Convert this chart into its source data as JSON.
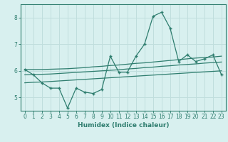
{
  "x": [
    0,
    1,
    2,
    3,
    4,
    5,
    6,
    7,
    8,
    9,
    10,
    11,
    12,
    13,
    14,
    15,
    16,
    17,
    18,
    19,
    20,
    21,
    22,
    23
  ],
  "y_main": [
    6.05,
    5.85,
    5.55,
    5.35,
    5.35,
    4.6,
    5.35,
    5.2,
    5.15,
    5.3,
    6.55,
    5.95,
    5.95,
    6.55,
    7.0,
    8.05,
    8.2,
    7.6,
    6.35,
    6.6,
    6.35,
    6.45,
    6.6,
    5.85
  ],
  "y_upper": [
    6.05,
    6.05,
    6.05,
    6.06,
    6.07,
    6.08,
    6.1,
    6.12,
    6.15,
    6.17,
    6.2,
    6.22,
    6.25,
    6.28,
    6.3,
    6.33,
    6.36,
    6.39,
    6.42,
    6.45,
    6.48,
    6.5,
    6.52,
    6.55
  ],
  "y_mid": [
    5.85,
    5.86,
    5.87,
    5.88,
    5.9,
    5.92,
    5.94,
    5.96,
    5.98,
    6.0,
    6.02,
    6.04,
    6.07,
    6.09,
    6.12,
    6.14,
    6.17,
    6.19,
    6.22,
    6.24,
    6.26,
    6.29,
    6.31,
    6.33
  ],
  "y_lower": [
    5.55,
    5.57,
    5.58,
    5.6,
    5.62,
    5.64,
    5.66,
    5.68,
    5.7,
    5.72,
    5.74,
    5.76,
    5.78,
    5.8,
    5.82,
    5.84,
    5.86,
    5.88,
    5.9,
    5.92,
    5.94,
    5.96,
    5.98,
    6.0
  ],
  "line_color": "#2e7d6e",
  "bg_color": "#d8f0ef",
  "grid_color": "#c0dedd",
  "xlabel": "Humidex (Indice chaleur)",
  "xlim": [
    -0.5,
    23.5
  ],
  "ylim": [
    4.5,
    8.5
  ],
  "yticks": [
    5,
    6,
    7,
    8
  ],
  "xticks": [
    0,
    1,
    2,
    3,
    4,
    5,
    6,
    7,
    8,
    9,
    10,
    11,
    12,
    13,
    14,
    15,
    16,
    17,
    18,
    19,
    20,
    21,
    22,
    23
  ]
}
